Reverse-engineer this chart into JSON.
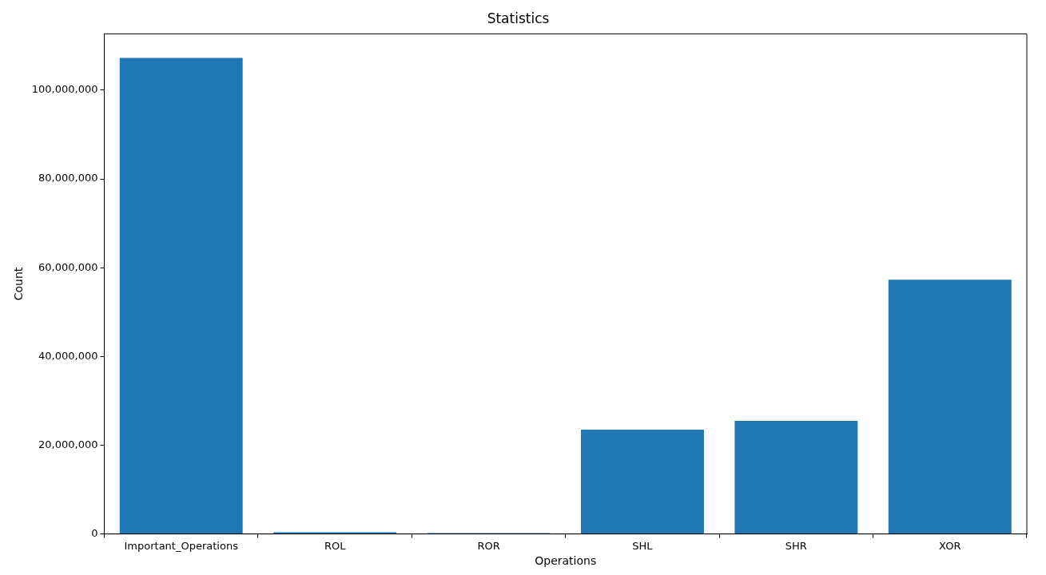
{
  "chart_data": {
    "type": "bar",
    "title": "Statistics",
    "xlabel": "Operations",
    "ylabel": "Count",
    "categories": [
      "Important_Operations",
      "ROL",
      "ROR",
      "SHL",
      "SHR",
      "XOR"
    ],
    "values": [
      107300000,
      400000,
      200000,
      23500000,
      25500000,
      57300000
    ],
    "color": "#1f77b4",
    "ylim": [
      0,
      112700000
    ],
    "yticks": [
      {
        "value": 0,
        "label": "0"
      },
      {
        "value": 20000000,
        "label": "20,000,000"
      },
      {
        "value": 40000000,
        "label": "40,000,000"
      },
      {
        "value": 60000000,
        "label": "60,000,000"
      },
      {
        "value": 80000000,
        "label": "80,000,000"
      },
      {
        "value": 100000000,
        "label": "100,000,000"
      }
    ],
    "grid": false,
    "legend": false
  }
}
